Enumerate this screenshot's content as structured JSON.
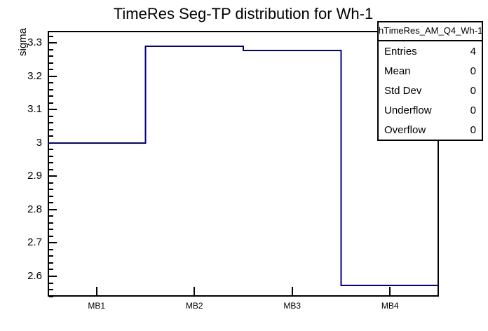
{
  "title": "TimeRes Seg-TP distribution for Wh-1",
  "colors": {
    "histogram_line": "#000099",
    "frame": "#000000",
    "text": "#000000",
    "background": "#ffffff"
  },
  "y_axis": {
    "label": "sigma",
    "tick_labels": [
      "3.3",
      "3.2",
      "3.1",
      "3",
      "2.9",
      "2.8",
      "2.7",
      "2.6"
    ]
  },
  "x_axis": {
    "tick_labels": [
      "MB1",
      "MB2",
      "MB3",
      "MB4"
    ]
  },
  "stats_box": {
    "header": "hTimeRes_AM_Q4_Wh-1",
    "rows": [
      {
        "label": "Entries",
        "value": "4"
      },
      {
        "label": "Mean",
        "value": "0"
      },
      {
        "label": "Std Dev",
        "value": "0"
      },
      {
        "label": "Underflow",
        "value": "0"
      },
      {
        "label": "Overflow",
        "value": "0"
      }
    ]
  },
  "chart_data": {
    "type": "bar",
    "style": "step-histogram-outline",
    "title": "TimeRes Seg-TP distribution for Wh-1",
    "xlabel": "",
    "ylabel": "sigma",
    "categories": [
      "MB1",
      "MB2",
      "MB3",
      "MB4"
    ],
    "values": [
      3.0,
      3.29,
      3.277,
      2.573
    ],
    "ylim": [
      2.539,
      3.336
    ],
    "y_major_ticks": [
      3.3,
      3.2,
      3.1,
      3.0,
      2.9,
      2.8,
      2.7,
      2.6
    ],
    "y_minor_step": 0.02,
    "grid": false,
    "legend": false
  }
}
